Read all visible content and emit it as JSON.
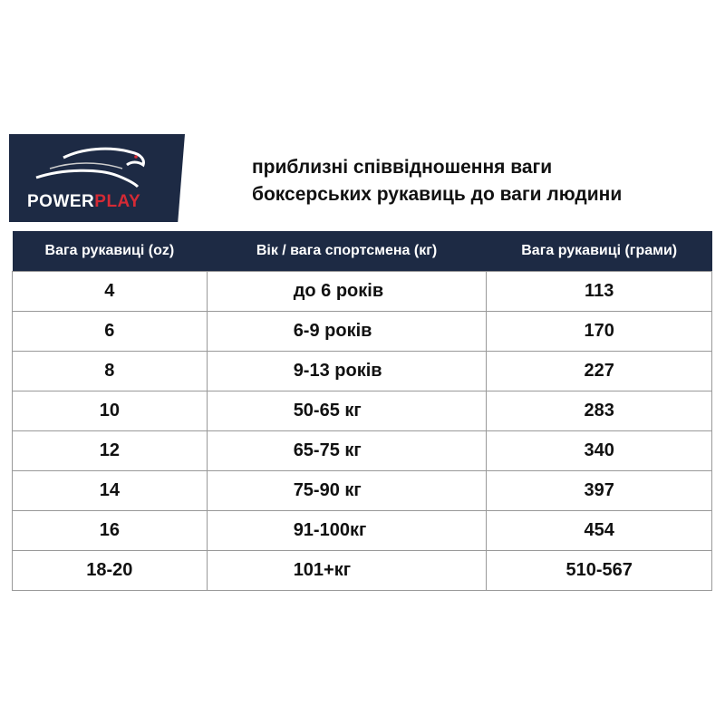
{
  "logo": {
    "brand_white": "POWER",
    "brand_red": "PLAY",
    "icon": "panther-icon",
    "colors": {
      "background": "#1d2a44",
      "accent": "#d42a35"
    }
  },
  "title": {
    "line1": "приблизні співвідношення ваги",
    "line2": "боксерських рукавиць до ваги людини"
  },
  "table": {
    "headers": [
      "Вага рукавиці (oz)",
      "Вік / вага спортсмена (кг)",
      "Вага рукавиці (грами)"
    ],
    "rows": [
      [
        "4",
        "до 6 років",
        "113"
      ],
      [
        "6",
        "6-9 років",
        "170"
      ],
      [
        "8",
        "9-13 років",
        "227"
      ],
      [
        "10",
        "50-65 кг",
        "283"
      ],
      [
        "12",
        "65-75 кг",
        "340"
      ],
      [
        "14",
        "75-90 кг",
        "397"
      ],
      [
        "16",
        "91-100кг",
        "454"
      ],
      [
        "18-20",
        "101+кг",
        "510-567"
      ]
    ]
  }
}
